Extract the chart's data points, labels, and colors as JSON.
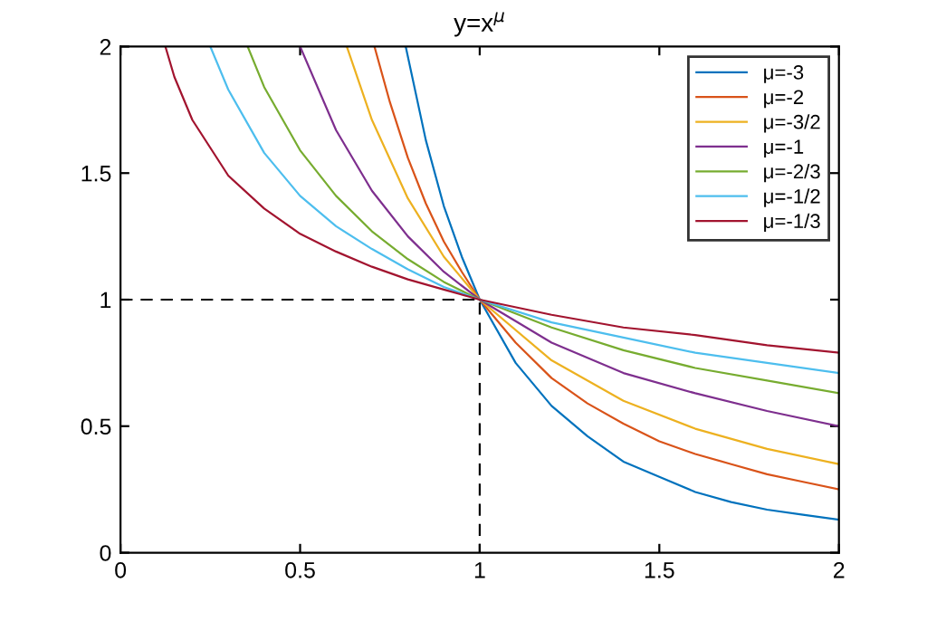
{
  "chart_data": {
    "type": "line",
    "title": "y=x$^{μ}$",
    "xlim": [
      0,
      2
    ],
    "ylim": [
      0,
      2
    ],
    "xticks": [
      0,
      0.5,
      1,
      1.5,
      2
    ],
    "yticks": [
      0,
      0.5,
      1,
      1.5,
      2
    ],
    "grid": false,
    "legend": "top right",
    "marker": "none",
    "line_style": "solid",
    "series": [
      {
        "name": "μ=-3",
        "color": "#0072bd",
        "x": [
          0.794,
          0.85,
          0.9,
          0.95,
          1,
          1.1,
          1.2,
          1.3,
          1.4,
          1.5,
          1.6,
          1.7,
          1.8,
          1.9,
          2
        ],
        "values": [
          2,
          1.63,
          1.37,
          1.17,
          1,
          0.75,
          0.58,
          0.46,
          0.36,
          0.3,
          0.24,
          0.2,
          0.17,
          0.15,
          0.13
        ]
      },
      {
        "name": "μ=-2",
        "color": "#d95319",
        "x": [
          0.707,
          0.75,
          0.8,
          0.85,
          0.9,
          0.95,
          1,
          1.1,
          1.2,
          1.3,
          1.4,
          1.5,
          1.6,
          1.7,
          1.8,
          1.9,
          2
        ],
        "values": [
          2,
          1.78,
          1.56,
          1.38,
          1.23,
          1.11,
          1,
          0.83,
          0.69,
          0.59,
          0.51,
          0.44,
          0.39,
          0.35,
          0.31,
          0.28,
          0.25
        ]
      },
      {
        "name": "μ=-3/2",
        "color": "#edb120",
        "x": [
          0.63,
          0.7,
          0.8,
          0.9,
          1,
          1.2,
          1.4,
          1.6,
          1.8,
          2
        ],
        "values": [
          2,
          1.71,
          1.4,
          1.17,
          1,
          0.76,
          0.6,
          0.49,
          0.41,
          0.35
        ]
      },
      {
        "name": "μ=-1",
        "color": "#7e2f8e",
        "x": [
          0.5,
          0.6,
          0.7,
          0.8,
          0.9,
          1,
          1.2,
          1.4,
          1.6,
          1.8,
          2
        ],
        "values": [
          2,
          1.67,
          1.43,
          1.25,
          1.11,
          1,
          0.83,
          0.71,
          0.63,
          0.56,
          0.5
        ]
      },
      {
        "name": "μ=-2/3",
        "color": "#77ac30",
        "x": [
          0.354,
          0.4,
          0.5,
          0.6,
          0.7,
          0.8,
          0.9,
          1,
          1.2,
          1.4,
          1.6,
          1.8,
          2
        ],
        "values": [
          2,
          1.84,
          1.59,
          1.41,
          1.27,
          1.16,
          1.07,
          1,
          0.89,
          0.8,
          0.73,
          0.68,
          0.63
        ]
      },
      {
        "name": "μ=-1/2",
        "color": "#4dbeee",
        "x": [
          0.25,
          0.3,
          0.4,
          0.5,
          0.6,
          0.7,
          0.8,
          0.9,
          1,
          1.2,
          1.4,
          1.6,
          1.8,
          2
        ],
        "values": [
          2,
          1.83,
          1.58,
          1.41,
          1.29,
          1.2,
          1.12,
          1.05,
          1,
          0.91,
          0.85,
          0.79,
          0.75,
          0.71
        ]
      },
      {
        "name": "μ=-1/3",
        "color": "#a2142f",
        "x": [
          0.125,
          0.15,
          0.2,
          0.3,
          0.4,
          0.5,
          0.6,
          0.7,
          0.8,
          0.9,
          1,
          1.2,
          1.4,
          1.6,
          1.8,
          2
        ],
        "values": [
          2,
          1.88,
          1.71,
          1.49,
          1.36,
          1.26,
          1.19,
          1.13,
          1.08,
          1.04,
          1,
          0.94,
          0.89,
          0.86,
          0.82,
          0.79
        ]
      },
      {
        "color": "#000000",
        "line_style": "dashed",
        "x": [
          0,
          1,
          1
        ],
        "values": [
          1,
          1,
          0
        ]
      }
    ]
  }
}
